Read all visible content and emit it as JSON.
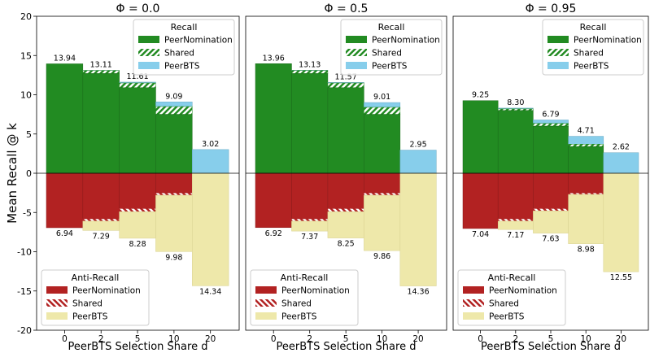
{
  "figure": {
    "ylabel": "Mean Recall @ k",
    "xlabel": "PeerBTS Selection Share d",
    "yticks": [
      20,
      15,
      10,
      5,
      0,
      -5,
      -10,
      -15,
      -20
    ],
    "ylim": [
      -20,
      20
    ]
  },
  "colors": {
    "peer_nomination_recall": "#228B22",
    "peerbts_recall": "#87CEEB",
    "peer_nomination_anti": "#B22222",
    "peerbts_anti": "#EEE8AA",
    "shared_recall_hatch": "#228B22",
    "shared_anti_hatch": "#B22222"
  },
  "legends": {
    "recall": {
      "title": "Recall",
      "items": [
        "PeerNomination",
        "Shared",
        "PeerBTS"
      ]
    },
    "anti": {
      "title": "Anti-Recall",
      "items": [
        "PeerNomination",
        "Shared",
        "PeerBTS"
      ]
    }
  },
  "chart_data": [
    {
      "type": "bar",
      "title": "Φ = 0.0",
      "categories": [
        "0",
        "2",
        "5",
        "10",
        "20"
      ],
      "recall_total": [
        13.94,
        13.11,
        11.61,
        9.09,
        3.02
      ],
      "recall_labels": [
        "13.94",
        "13.11",
        "11.61",
        "9.09",
        "3.02"
      ],
      "recall_peernomination": [
        13.94,
        12.7,
        10.9,
        7.5,
        0
      ],
      "recall_shared": [
        0,
        0.4,
        0.6,
        1.0,
        0
      ],
      "anti_total": [
        6.94,
        7.29,
        8.28,
        9.98,
        14.34
      ],
      "anti_labels": [
        "6.94",
        "7.29",
        "8.28",
        "9.98",
        "14.34"
      ],
      "anti_peernomination": [
        6.94,
        5.8,
        4.5,
        2.5,
        0
      ],
      "anti_shared": [
        0,
        0.3,
        0.4,
        0.3,
        0
      ],
      "show_legends": true,
      "show_yticks": true
    },
    {
      "type": "bar",
      "title": "Φ = 0.5",
      "categories": [
        "0",
        "2",
        "5",
        "10",
        "20"
      ],
      "recall_total": [
        13.96,
        13.13,
        11.57,
        9.01,
        2.95
      ],
      "recall_labels": [
        "13.96",
        "13.13",
        "11.57",
        "9.01",
        "2.95"
      ],
      "recall_peernomination": [
        13.96,
        12.7,
        10.9,
        7.5,
        0
      ],
      "recall_shared": [
        0,
        0.4,
        0.6,
        0.9,
        0
      ],
      "anti_total": [
        6.92,
        7.37,
        8.25,
        9.86,
        14.36
      ],
      "anti_labels": [
        "6.92",
        "7.37",
        "8.25",
        "9.86",
        "14.36"
      ],
      "anti_peernomination": [
        6.92,
        5.8,
        4.5,
        2.5,
        0
      ],
      "anti_shared": [
        0,
        0.3,
        0.4,
        0.3,
        0
      ],
      "show_legends": true,
      "show_yticks": false
    },
    {
      "type": "bar",
      "title": "Φ = 0.95",
      "categories": [
        "0",
        "2",
        "5",
        "10",
        "20"
      ],
      "recall_total": [
        9.25,
        8.3,
        6.79,
        4.71,
        2.62
      ],
      "recall_labels": [
        "9.25",
        "8.30",
        "6.79",
        "4.71",
        "2.62"
      ],
      "recall_peernomination": [
        9.25,
        8.0,
        6.0,
        3.4,
        0
      ],
      "recall_shared": [
        0,
        0.2,
        0.35,
        0.3,
        0
      ],
      "anti_total": [
        7.04,
        7.17,
        7.63,
        8.98,
        12.55
      ],
      "anti_labels": [
        "7.04",
        "7.17",
        "7.63",
        "8.98",
        "12.55"
      ],
      "anti_peernomination": [
        7.04,
        5.8,
        4.5,
        2.5,
        0
      ],
      "anti_shared": [
        0,
        0.3,
        0.3,
        0.2,
        0
      ],
      "show_legends": true,
      "show_yticks": false
    }
  ]
}
